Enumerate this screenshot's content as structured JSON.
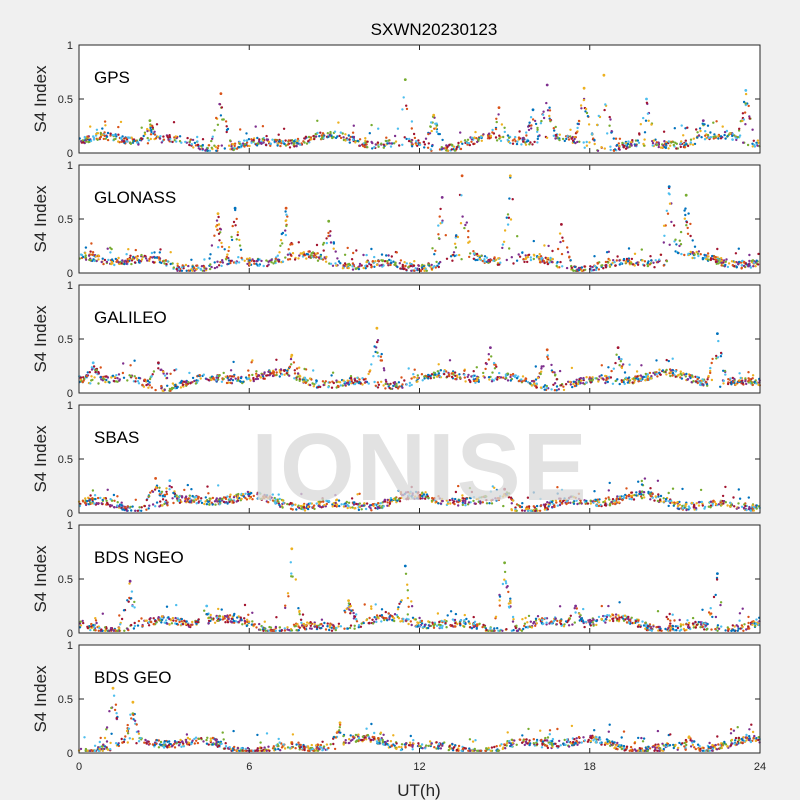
{
  "title": "SXWN20230123",
  "watermark": "IONISE",
  "colors": [
    "#0072BD",
    "#D95319",
    "#EDB120",
    "#7E2F8E",
    "#77AC30",
    "#4DBEEE",
    "#A2142F"
  ],
  "chart_data": {
    "type": "scatter",
    "title": "SXWN20230123",
    "xlabel": "UT(h)",
    "xlim": [
      0,
      24
    ],
    "xticks": [
      0,
      6,
      12,
      18,
      24
    ],
    "xtick_labels": [
      "0",
      "6",
      "12",
      "18",
      "24"
    ],
    "ylabel": "S4 Index",
    "ylim": [
      0,
      1
    ],
    "yticks": [
      0,
      0.5,
      1
    ],
    "ytick_labels": [
      "0",
      "0.5",
      "1"
    ],
    "grid": false,
    "legend": "none",
    "panels": [
      {
        "name": "GPS",
        "baseline": 0.1,
        "spikes": [
          [
            2.5,
            0.3
          ],
          [
            5.0,
            0.55
          ],
          [
            11.5,
            0.68
          ],
          [
            12.5,
            0.35
          ],
          [
            14.8,
            0.42
          ],
          [
            16.0,
            0.4
          ],
          [
            16.5,
            0.63
          ],
          [
            17.8,
            0.6
          ],
          [
            18.5,
            0.72
          ],
          [
            20.0,
            0.5
          ],
          [
            22.0,
            0.3
          ],
          [
            23.5,
            0.58
          ]
        ]
      },
      {
        "name": "GLONASS",
        "baseline": 0.1,
        "spikes": [
          [
            4.9,
            0.55
          ],
          [
            5.5,
            0.6
          ],
          [
            7.3,
            0.6
          ],
          [
            8.8,
            0.48
          ],
          [
            12.8,
            0.7
          ],
          [
            13.5,
            0.9
          ],
          [
            15.2,
            0.9
          ],
          [
            17.0,
            0.45
          ],
          [
            20.8,
            0.8
          ],
          [
            21.4,
            0.72
          ]
        ]
      },
      {
        "name": "GALILEO",
        "baseline": 0.12,
        "spikes": [
          [
            0.5,
            0.28
          ],
          [
            2.8,
            0.28
          ],
          [
            7.5,
            0.35
          ],
          [
            10.5,
            0.6
          ],
          [
            14.5,
            0.42
          ],
          [
            16.5,
            0.4
          ],
          [
            19.0,
            0.42
          ],
          [
            22.5,
            0.55
          ]
        ]
      },
      {
        "name": "SBAS",
        "baseline": 0.1,
        "spikes": [
          [
            2.7,
            0.32
          ],
          [
            3.2,
            0.3
          ],
          [
            15.0,
            0.22
          ]
        ]
      },
      {
        "name": "BDS NGEO",
        "baseline": 0.08,
        "spikes": [
          [
            1.8,
            0.48
          ],
          [
            4.5,
            0.25
          ],
          [
            7.5,
            0.78
          ],
          [
            9.5,
            0.3
          ],
          [
            11.5,
            0.62
          ],
          [
            15.0,
            0.65
          ],
          [
            17.5,
            0.25
          ],
          [
            22.5,
            0.55
          ]
        ]
      },
      {
        "name": "BDS GEO",
        "baseline": 0.07,
        "spikes": [
          [
            1.2,
            0.6
          ],
          [
            1.9,
            0.47
          ],
          [
            9.2,
            0.28
          ],
          [
            21.5,
            0.15
          ]
        ]
      }
    ]
  }
}
